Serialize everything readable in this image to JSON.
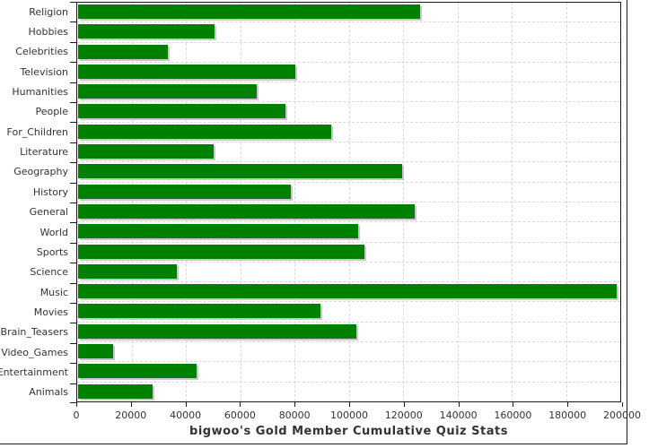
{
  "chart_data": {
    "type": "bar",
    "orientation": "horizontal",
    "title": "bigwoo's Gold Member Cumulative Quiz Stats",
    "categories": [
      "Religion",
      "Hobbies",
      "Celebrities",
      "Television",
      "Humanities",
      "People",
      "For_Children",
      "Literature",
      "Geography",
      "History",
      "General",
      "World",
      "Sports",
      "Science",
      "Music",
      "Movies",
      "Brain_Teasers",
      "Video_Games",
      "Entertainment",
      "Animals"
    ],
    "values": [
      126300,
      50700,
      33300,
      80400,
      66100,
      76800,
      93700,
      50300,
      119800,
      78700,
      124400,
      103600,
      105800,
      36800,
      198800,
      89700,
      102700,
      13200,
      44100,
      27800
    ],
    "xlim": [
      0,
      200000
    ],
    "x_ticks": [
      0,
      20000,
      40000,
      60000,
      80000,
      100000,
      120000,
      140000,
      160000,
      180000,
      200000
    ],
    "x_tick_labels": [
      "0",
      "20000",
      "40000",
      "60000",
      "80000",
      "100000",
      "120000",
      "140000",
      "160000",
      "180000",
      "200000"
    ],
    "grid": true,
    "legend_position": "none",
    "colors": {
      "bar_fill": "#008000",
      "bar_shadow": "#c9c9c9",
      "gridline": "#d9d9d9",
      "axis": "#1a1a1a",
      "text": "#333333"
    }
  }
}
